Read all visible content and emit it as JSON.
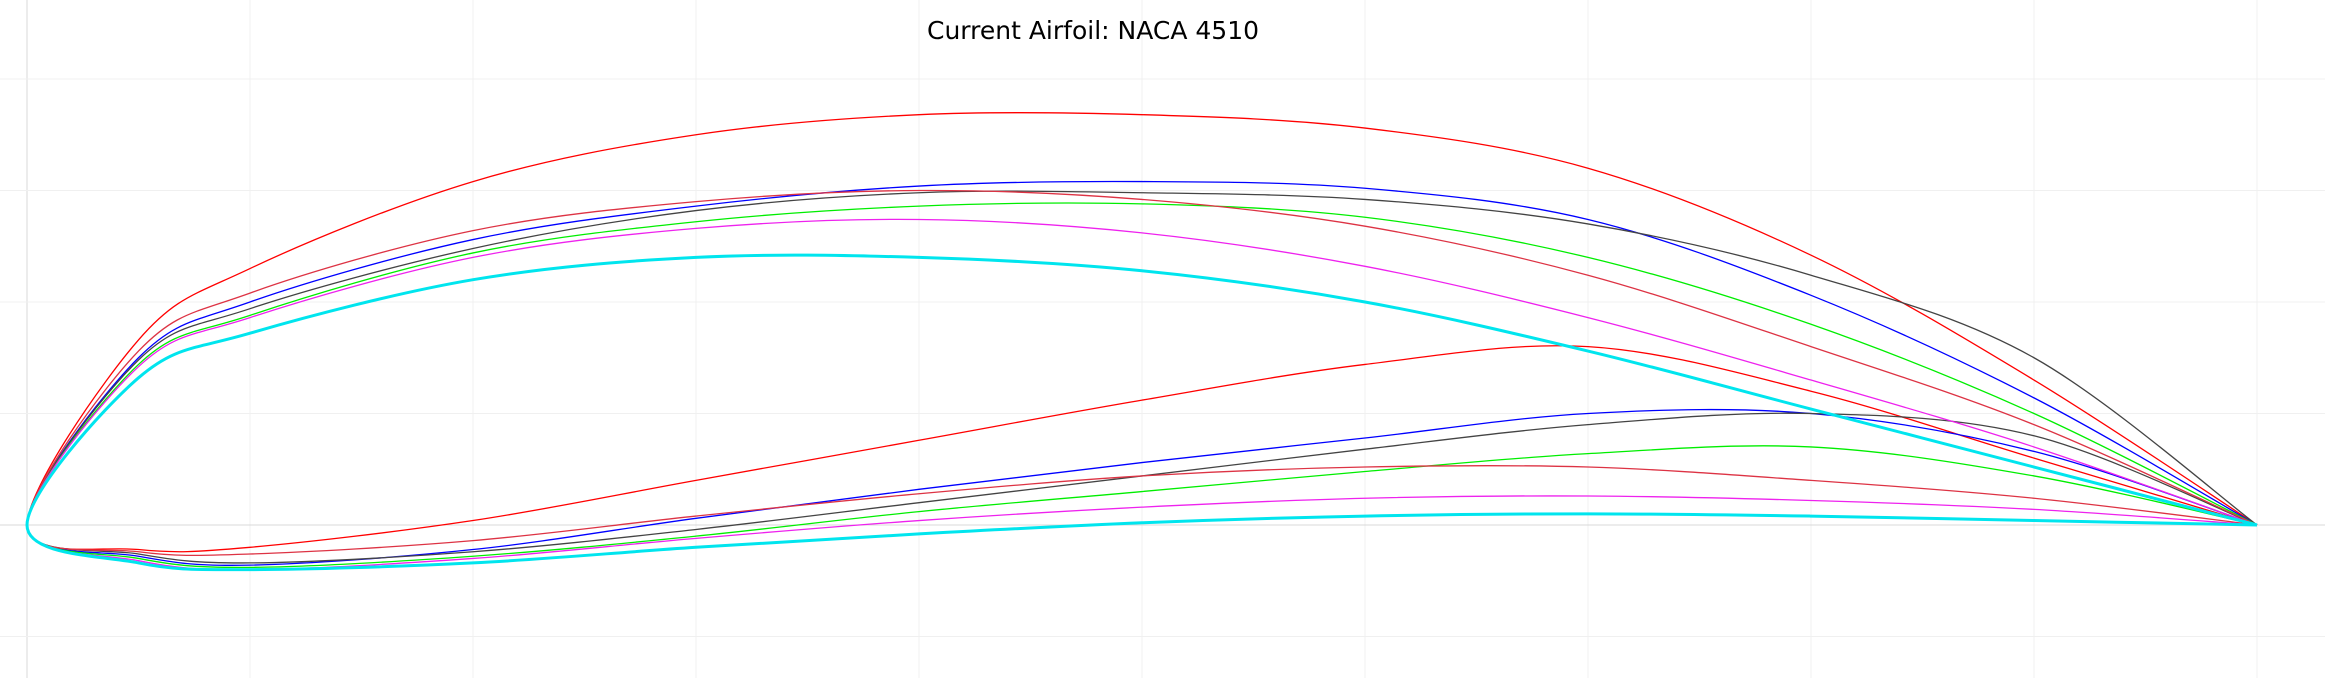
{
  "title": "Current Airfoil: NACA 4510",
  "chart_data": {
    "type": "line",
    "title": "Current Airfoil: NACA 4510",
    "xlabel": "",
    "ylabel": "",
    "xlim": [
      0,
      1
    ],
    "ylim": [
      -0.06,
      0.24
    ],
    "aspect": "equal",
    "grid": true,
    "legend": "none",
    "series": [
      {
        "color": "#ff0000",
        "upper": [
          [
            0,
            0
          ],
          [
            0.05,
            0.083
          ],
          [
            0.1,
            0.115
          ],
          [
            0.2,
            0.154
          ],
          [
            0.3,
            0.175
          ],
          [
            0.4,
            0.184
          ],
          [
            0.5,
            0.184
          ],
          [
            0.6,
            0.178
          ],
          [
            0.7,
            0.16
          ],
          [
            0.8,
            0.121
          ],
          [
            0.9,
            0.065
          ],
          [
            1,
            0
          ]
        ],
        "lower": [
          [
            0,
            0
          ],
          [
            0.05,
            -0.011
          ],
          [
            0.1,
            -0.01
          ],
          [
            0.2,
            0.002
          ],
          [
            0.3,
            0.02
          ],
          [
            0.4,
            0.038
          ],
          [
            0.5,
            0.056
          ],
          [
            0.6,
            0.072
          ],
          [
            0.7,
            0.08
          ],
          [
            0.8,
            0.06
          ],
          [
            0.9,
            0.03
          ],
          [
            1,
            0
          ]
        ]
      },
      {
        "color": "#0000ff",
        "upper": [
          [
            0,
            0
          ],
          [
            0.05,
            0.075
          ],
          [
            0.1,
            0.1
          ],
          [
            0.2,
            0.128
          ],
          [
            0.3,
            0.143
          ],
          [
            0.4,
            0.152
          ],
          [
            0.5,
            0.154
          ],
          [
            0.6,
            0.151
          ],
          [
            0.7,
            0.137
          ],
          [
            0.8,
            0.103
          ],
          [
            0.9,
            0.057
          ],
          [
            1,
            0
          ]
        ],
        "lower": [
          [
            0,
            0
          ],
          [
            0.05,
            -0.014
          ],
          [
            0.1,
            -0.018
          ],
          [
            0.2,
            -0.011
          ],
          [
            0.3,
            0.003
          ],
          [
            0.4,
            0.016
          ],
          [
            0.5,
            0.028
          ],
          [
            0.6,
            0.039
          ],
          [
            0.7,
            0.05
          ],
          [
            0.8,
            0.05
          ],
          [
            0.9,
            0.033
          ],
          [
            1,
            0
          ]
        ]
      },
      {
        "color": "#444444",
        "upper": [
          [
            0,
            0
          ],
          [
            0.05,
            0.074
          ],
          [
            0.1,
            0.097
          ],
          [
            0.2,
            0.124
          ],
          [
            0.3,
            0.141
          ],
          [
            0.4,
            0.149
          ],
          [
            0.5,
            0.149
          ],
          [
            0.6,
            0.146
          ],
          [
            0.7,
            0.135
          ],
          [
            0.8,
            0.112
          ],
          [
            0.9,
            0.075
          ],
          [
            1,
            0
          ]
        ],
        "lower": [
          [
            0,
            0
          ],
          [
            0.05,
            -0.013
          ],
          [
            0.1,
            -0.017
          ],
          [
            0.2,
            -0.012
          ],
          [
            0.3,
            -0.002
          ],
          [
            0.4,
            0.01
          ],
          [
            0.5,
            0.022
          ],
          [
            0.6,
            0.034
          ],
          [
            0.7,
            0.045
          ],
          [
            0.8,
            0.05
          ],
          [
            0.9,
            0.04
          ],
          [
            1,
            0
          ]
        ]
      },
      {
        "color": "#00ee00",
        "upper": [
          [
            0,
            0
          ],
          [
            0.05,
            0.072
          ],
          [
            0.1,
            0.094
          ],
          [
            0.2,
            0.122
          ],
          [
            0.3,
            0.136
          ],
          [
            0.4,
            0.143
          ],
          [
            0.5,
            0.144
          ],
          [
            0.6,
            0.138
          ],
          [
            0.7,
            0.12
          ],
          [
            0.8,
            0.09
          ],
          [
            0.9,
            0.05
          ],
          [
            1,
            0
          ]
        ],
        "lower": [
          [
            0,
            0
          ],
          [
            0.05,
            -0.015
          ],
          [
            0.1,
            -0.019
          ],
          [
            0.2,
            -0.014
          ],
          [
            0.3,
            -0.005
          ],
          [
            0.4,
            0.006
          ],
          [
            0.5,
            0.015
          ],
          [
            0.6,
            0.024
          ],
          [
            0.7,
            0.032
          ],
          [
            0.8,
            0.035
          ],
          [
            0.9,
            0.022
          ],
          [
            1,
            0
          ]
        ]
      },
      {
        "color": "#dd3344",
        "upper": [
          [
            0,
            0
          ],
          [
            0.05,
            0.078
          ],
          [
            0.1,
            0.104
          ],
          [
            0.2,
            0.132
          ],
          [
            0.3,
            0.145
          ],
          [
            0.4,
            0.15
          ],
          [
            0.5,
            0.146
          ],
          [
            0.6,
            0.134
          ],
          [
            0.7,
            0.112
          ],
          [
            0.8,
            0.08
          ],
          [
            0.9,
            0.045
          ],
          [
            1,
            0
          ]
        ],
        "lower": [
          [
            0,
            0
          ],
          [
            0.05,
            -0.012
          ],
          [
            0.1,
            -0.013
          ],
          [
            0.2,
            -0.007
          ],
          [
            0.3,
            0.004
          ],
          [
            0.4,
            0.014
          ],
          [
            0.5,
            0.022
          ],
          [
            0.6,
            0.026
          ],
          [
            0.7,
            0.026
          ],
          [
            0.8,
            0.02
          ],
          [
            0.9,
            0.012
          ],
          [
            1,
            0
          ]
        ]
      },
      {
        "color": "#ee22ee",
        "upper": [
          [
            0,
            0
          ],
          [
            0.05,
            0.071
          ],
          [
            0.1,
            0.093
          ],
          [
            0.2,
            0.12
          ],
          [
            0.3,
            0.133
          ],
          [
            0.4,
            0.137
          ],
          [
            0.5,
            0.131
          ],
          [
            0.6,
            0.116
          ],
          [
            0.7,
            0.093
          ],
          [
            0.8,
            0.065
          ],
          [
            0.9,
            0.035
          ],
          [
            1,
            0
          ]
        ],
        "lower": [
          [
            0,
            0
          ],
          [
            0.05,
            -0.016
          ],
          [
            0.1,
            -0.02
          ],
          [
            0.2,
            -0.015
          ],
          [
            0.3,
            -0.006
          ],
          [
            0.4,
            0.002
          ],
          [
            0.5,
            0.008
          ],
          [
            0.6,
            0.012
          ],
          [
            0.7,
            0.013
          ],
          [
            0.8,
            0.011
          ],
          [
            0.9,
            0.007
          ],
          [
            1,
            0
          ]
        ]
      },
      {
        "color": "#00e5ee",
        "width": 3,
        "upper": [
          [
            0,
            0
          ],
          [
            0.05,
            0.066
          ],
          [
            0.1,
            0.086
          ],
          [
            0.2,
            0.11
          ],
          [
            0.3,
            0.12
          ],
          [
            0.4,
            0.12
          ],
          [
            0.5,
            0.114
          ],
          [
            0.6,
            0.1
          ],
          [
            0.7,
            0.078
          ],
          [
            0.8,
            0.052
          ],
          [
            0.9,
            0.026
          ],
          [
            1,
            0
          ]
        ],
        "lower": [
          [
            0,
            0
          ],
          [
            0.05,
            -0.017
          ],
          [
            0.1,
            -0.02
          ],
          [
            0.2,
            -0.017
          ],
          [
            0.3,
            -0.01
          ],
          [
            0.4,
            -0.004
          ],
          [
            0.5,
            0.001
          ],
          [
            0.6,
            0.004
          ],
          [
            0.7,
            0.005
          ],
          [
            0.8,
            0.004
          ],
          [
            0.9,
            0.002
          ],
          [
            1,
            0
          ]
        ]
      }
    ]
  }
}
